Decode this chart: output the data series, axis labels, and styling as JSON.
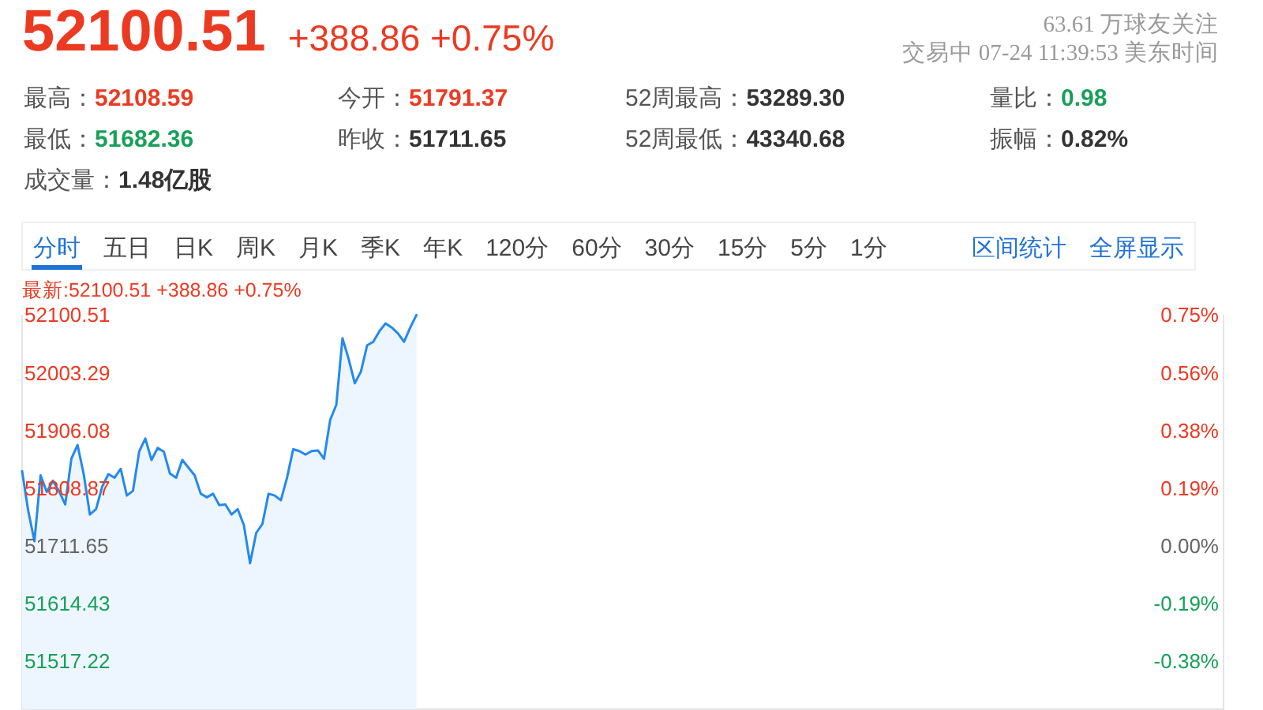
{
  "chart_data": [
    {
      "type": "other",
      "title": "52100.51",
      "subtitle": "+388.86 +0.75%",
      "annotations": [
        "63.61 万球友关注",
        "交易中 07-24 11:39:53 美东时间",
        "最高：",
        "52108.59",
        "今开：",
        "51791.37",
        "52周最高：",
        "53289.30",
        "量比：",
        "0.98",
        "最低：",
        "51682.36",
        "昨收：",
        "51711.65",
        "52周最低：",
        "43340.68",
        "振幅：",
        "0.82%",
        "成交量：",
        "1.48亿股"
      ]
    },
    {
      "type": "area",
      "annotations": [
        "最新:52100.51 +388.86 +0.75%",
        "分时",
        "五日",
        "日K",
        "周K",
        "月K",
        "季K",
        "年K",
        "120分",
        "60分",
        "30分",
        "15分",
        "5分",
        "1分",
        "区间统计",
        "全屏显示"
      ],
      "categories": [
        null,
        null,
        null,
        null,
        null,
        null,
        null,
        null,
        null,
        null,
        null,
        null,
        null,
        null,
        null,
        null,
        null,
        null,
        null,
        null,
        null,
        null,
        null,
        null,
        null,
        null,
        null,
        null,
        null,
        null,
        null,
        null,
        null,
        null,
        null,
        null,
        null,
        null,
        null,
        null,
        null,
        null,
        null,
        null,
        null,
        null,
        null,
        null,
        null,
        null,
        null,
        null,
        null,
        null,
        null,
        null,
        null,
        null,
        null,
        null,
        null,
        null,
        null,
        null,
        null,
        null,
        null,
        null,
        null,
        null,
        null,
        null,
        null,
        null,
        null,
        null,
        null,
        null,
        null,
        null,
        null,
        null,
        null,
        null,
        null,
        null,
        null,
        null,
        null,
        null,
        null,
        null,
        null,
        null,
        null,
        null,
        null,
        null,
        null,
        null,
        null,
        null,
        null,
        null,
        null,
        null,
        null,
        null,
        null,
        null,
        null,
        null,
        null,
        null,
        null,
        null,
        null,
        null,
        null,
        null,
        null,
        null,
        null,
        null,
        null,
        null,
        null,
        null,
        null,
        null,
        null,
        null,
        null,
        null,
        null,
        null,
        null,
        null,
        null,
        null,
        null,
        null,
        null,
        null,
        null,
        null,
        null,
        null,
        null,
        null,
        null,
        null,
        null,
        null,
        null,
        null,
        null,
        null,
        null,
        null,
        null,
        null,
        null,
        null,
        null,
        null,
        null,
        null,
        null,
        null,
        null,
        null,
        null,
        null,
        null,
        null,
        null,
        null,
        null,
        null,
        null,
        null,
        null,
        null,
        null,
        null,
        null,
        null,
        null,
        null,
        null,
        null,
        null,
        null,
        null,
        null
      ],
      "series": [
        {
          "color": "#2489ee",
          "values": [
            51837,
            51770,
            51719,
            51830,
            51802,
            51821,
            51803,
            51781,
            51858,
            51881,
            51832,
            51764,
            51773,
            51811,
            51832,
            51826,
            51841,
            51796,
            51804,
            51870,
            51892,
            51856,
            51876,
            51870,
            51833,
            51826,
            51856,
            51843,
            51830,
            51799,
            51793,
            51799,
            51780,
            51781,
            51764,
            51773,
            51746,
            51682,
            51733,
            51748,
            51799,
            51796,
            51788,
            51826,
            51874,
            51871,
            51865,
            51871,
            51872,
            51858,
            51923,
            51949,
            52061,
            52026,
            51985,
            52005,
            52049,
            52055,
            52073,
            52086,
            52079,
            52069,
            52055,
            52079,
            52100,
            null,
            null,
            null,
            null,
            null,
            null,
            null,
            null,
            null,
            null,
            null,
            null,
            null,
            null,
            null,
            null,
            null,
            null,
            null,
            null,
            null,
            null,
            null,
            null,
            null,
            null,
            null,
            null,
            null,
            null,
            null,
            null,
            null,
            null,
            null,
            null,
            null,
            null,
            null,
            null,
            null,
            null,
            null,
            null,
            null,
            null,
            null,
            null,
            null,
            null,
            null,
            null,
            null,
            null,
            null,
            null,
            null,
            null,
            null,
            null,
            null,
            null,
            null,
            null,
            null,
            null,
            null,
            null,
            null,
            null,
            null,
            null,
            null,
            null,
            null,
            null,
            null,
            null,
            null,
            null,
            null,
            null,
            null,
            null,
            null,
            null,
            null,
            null,
            null,
            null,
            null,
            null,
            null,
            null,
            null,
            null,
            null,
            null,
            null,
            null,
            null,
            null,
            null,
            null,
            null,
            null,
            null,
            null,
            null,
            null,
            null,
            null,
            null,
            null,
            null,
            null,
            null,
            null,
            null,
            null,
            null,
            null,
            null,
            null,
            null,
            null,
            null,
            null,
            null,
            null,
            null
          ]
        }
      ],
      "ylim": [
        51436,
        52100.51
      ],
      "yticks": [
        51517.22,
        51614.43,
        51711.65,
        51808.87,
        51906.08,
        52003.29,
        52100.51
      ],
      "y2lim": [
        -0.533,
        0.752
      ],
      "y2ticks": [
        {
          "value": -0.376,
          "label": "-0.38%"
        },
        {
          "value": -0.188,
          "label": "-0.19%"
        },
        {
          "value": 0,
          "label": "0.00%"
        },
        {
          "value": 0.188,
          "label": "0.19%"
        },
        {
          "value": 0.376,
          "label": "0.38%"
        },
        {
          "value": 0.564,
          "label": "0.56%"
        },
        {
          "value": 0.752,
          "label": "0.75%"
        }
      ]
    }
  ]
}
